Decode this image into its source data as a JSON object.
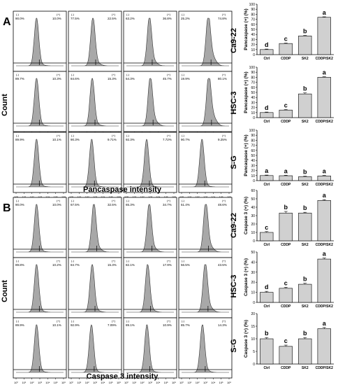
{
  "panel_labels": [
    "A",
    "B"
  ],
  "flow_col_titles": [
    "Ctrl",
    "CDDP",
    "SK2",
    "CDDP/SK2"
  ],
  "row_labels": [
    "Ca9-22",
    "HSC-3",
    "S-G"
  ],
  "flow_y_label": "Count",
  "section_a_xlabel": "Pancaspase intensity",
  "section_b_xlabel": "Caspase 3 intensity",
  "gate_labels": [
    "(-)",
    "(+)"
  ],
  "flow_pct_a": [
    [
      [
        "90.0%",
        "10.0%"
      ],
      [
        "77.5%",
        "22.5%"
      ],
      [
        "63.2%",
        "36.8%"
      ],
      [
        "25.2%",
        "74.8%"
      ]
    ],
    [
      [
        "89.7%",
        "10.3%"
      ],
      [
        "84.6%",
        "15.3%"
      ],
      [
        "54.3%",
        "45.7%"
      ],
      [
        "19.9%",
        "80.1%"
      ]
    ],
    [
      [
        "89.9%",
        "10.1%"
      ],
      [
        "90.3%",
        "9.71%"
      ],
      [
        "92.3%",
        "7.72%"
      ],
      [
        "90.7%",
        "9.25%"
      ]
    ]
  ],
  "flow_pct_b": [
    [
      [
        "90.0%",
        "10.0%"
      ],
      [
        "67.5%",
        "32.5%"
      ],
      [
        "65.3%",
        "34.7%"
      ],
      [
        "51.4%",
        "48.6%"
      ]
    ],
    [
      [
        "89.8%",
        "10.2%"
      ],
      [
        "84.7%",
        "15.3%"
      ],
      [
        "82.1%",
        "17.9%"
      ],
      [
        "56.5%",
        "43.5%"
      ]
    ],
    [
      [
        "89.9%",
        "10.1%"
      ],
      [
        "92.9%",
        "7.09%"
      ],
      [
        "89.1%",
        "10.9%"
      ],
      [
        "85.7%",
        "14.3%"
      ]
    ]
  ],
  "flow_axis_ticks": [
    "10⁰",
    "10¹",
    "10²",
    "10³",
    "10⁴",
    "10⁵",
    "10⁶"
  ],
  "bar_categories": [
    "Ctrl",
    "CDDP",
    "SK2",
    "CDDP/SK2"
  ],
  "bar_yticks": [
    "0",
    "10",
    "20",
    "30",
    "40",
    "50",
    "60",
    "70",
    "80",
    "90",
    "100"
  ],
  "chart_data": [
    {
      "type": "bar",
      "section": "A",
      "row_label": "Ca9-22",
      "ylabel": "Pancaspase (+) (%)",
      "ylim": [
        0,
        100
      ],
      "categories": [
        "Ctrl",
        "CDDP",
        "SK2",
        "CDDP/SK2"
      ],
      "values": [
        10,
        22,
        37,
        74
      ],
      "errors": [
        1,
        1,
        1,
        1
      ],
      "letters": [
        "d",
        "c",
        "b",
        "a"
      ]
    },
    {
      "type": "bar",
      "section": "A",
      "row_label": "HSC-3",
      "ylabel": "Pancaspase (+) (%)",
      "ylim": [
        0,
        100
      ],
      "categories": [
        "Ctrl",
        "CDDP",
        "SK2",
        "CDDP/SK2"
      ],
      "values": [
        10,
        15,
        47,
        80
      ],
      "errors": [
        1,
        1,
        2,
        1
      ],
      "letters": [
        "d",
        "c",
        "b",
        "a"
      ]
    },
    {
      "type": "bar",
      "section": "A",
      "row_label": "S-G",
      "ylabel": "Pancaspase (+) (%)",
      "ylim": [
        0,
        100
      ],
      "categories": [
        "Ctrl",
        "CDDP",
        "SK2",
        "CDDP/SK2"
      ],
      "values": [
        10,
        9.7,
        7.7,
        9.3
      ],
      "errors": [
        1,
        1,
        1,
        1
      ],
      "letters": [
        "a",
        "a",
        "b",
        "a"
      ]
    },
    {
      "type": "bar",
      "section": "B",
      "row_label": "Ca9-22",
      "ylabel": "Caspase 3 (+) (%)",
      "ylim": [
        0,
        60
      ],
      "categories": [
        "Ctrl",
        "CDDP",
        "SK2",
        "CDDP/SK2"
      ],
      "values": [
        10,
        33,
        33,
        48
      ],
      "errors": [
        1,
        2,
        1,
        1
      ],
      "letters": [
        "c",
        "b",
        "b",
        "a"
      ]
    },
    {
      "type": "bar",
      "section": "B",
      "row_label": "HSC-3",
      "ylabel": "Caspase 3 (+) (%)",
      "ylim": [
        0,
        50
      ],
      "categories": [
        "Ctrl",
        "CDDP",
        "SK2",
        "CDDP/SK2"
      ],
      "values": [
        10,
        14,
        18,
        43
      ],
      "errors": [
        1,
        1,
        1,
        1
      ],
      "letters": [
        "d",
        "c",
        "b",
        "a"
      ]
    },
    {
      "type": "bar",
      "section": "B",
      "row_label": "S-G",
      "ylabel": "Caspase 3 (+) (%)",
      "ylim": [
        0,
        20
      ],
      "categories": [
        "Ctrl",
        "CDDP",
        "SK2",
        "CDDP/SK2"
      ],
      "values": [
        10,
        7,
        10,
        14
      ],
      "errors": [
        0.5,
        0.5,
        0.5,
        0.5
      ],
      "letters": [
        "b",
        "c",
        "b",
        "a"
      ]
    }
  ],
  "bar_yticks_by_chart": [
    [
      "0",
      "10",
      "20",
      "30",
      "40",
      "50",
      "60",
      "70",
      "80",
      "90",
      "100"
    ],
    [
      "0",
      "10",
      "20",
      "30",
      "40",
      "50",
      "60",
      "70",
      "80",
      "90",
      "100"
    ],
    [
      "0",
      "10",
      "20",
      "30",
      "40",
      "50",
      "60",
      "70",
      "80",
      "90",
      "100"
    ],
    [
      "0",
      "10",
      "20",
      "30",
      "40",
      "50",
      "60"
    ],
    [
      "0",
      "10",
      "20",
      "30",
      "40",
      "50"
    ],
    [
      "0",
      "5",
      "10",
      "15",
      "20"
    ]
  ],
  "colors": {
    "hist_fill": "#a8a8a8",
    "bar_fill": "#d0d0d0",
    "frame": "#000000"
  }
}
